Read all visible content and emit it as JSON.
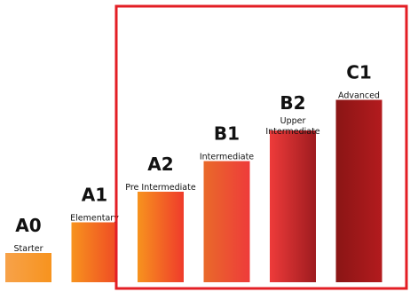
{
  "chart_data": {
    "type": "bar",
    "categories": [
      "A0",
      "A1",
      "A2",
      "B1",
      "B2",
      "C1"
    ],
    "labels": [
      "Starter",
      "Elementary",
      "Pre Intermediate",
      "Intermediate",
      "Upper Intermediate",
      "Advanced"
    ],
    "values": [
      1,
      2,
      3,
      4,
      5,
      6
    ],
    "ylim": [
      0,
      6
    ],
    "grid": false,
    "legend": "none",
    "bar_gradients": [
      [
        "#f7a24a",
        "#f7931e"
      ],
      [
        "#f7931e",
        "#ef4a24"
      ],
      [
        "#f7931e",
        "#ef3b2b"
      ],
      [
        "#e96a2a",
        "#ee3b3a"
      ],
      [
        "#ee3b3a",
        "#9e1b1f"
      ],
      [
        "#8a1515",
        "#b31b1e"
      ]
    ],
    "highlight": {
      "categories": [
        "A2",
        "B1",
        "B2",
        "C1"
      ],
      "border_color": "#e31e24"
    }
  }
}
